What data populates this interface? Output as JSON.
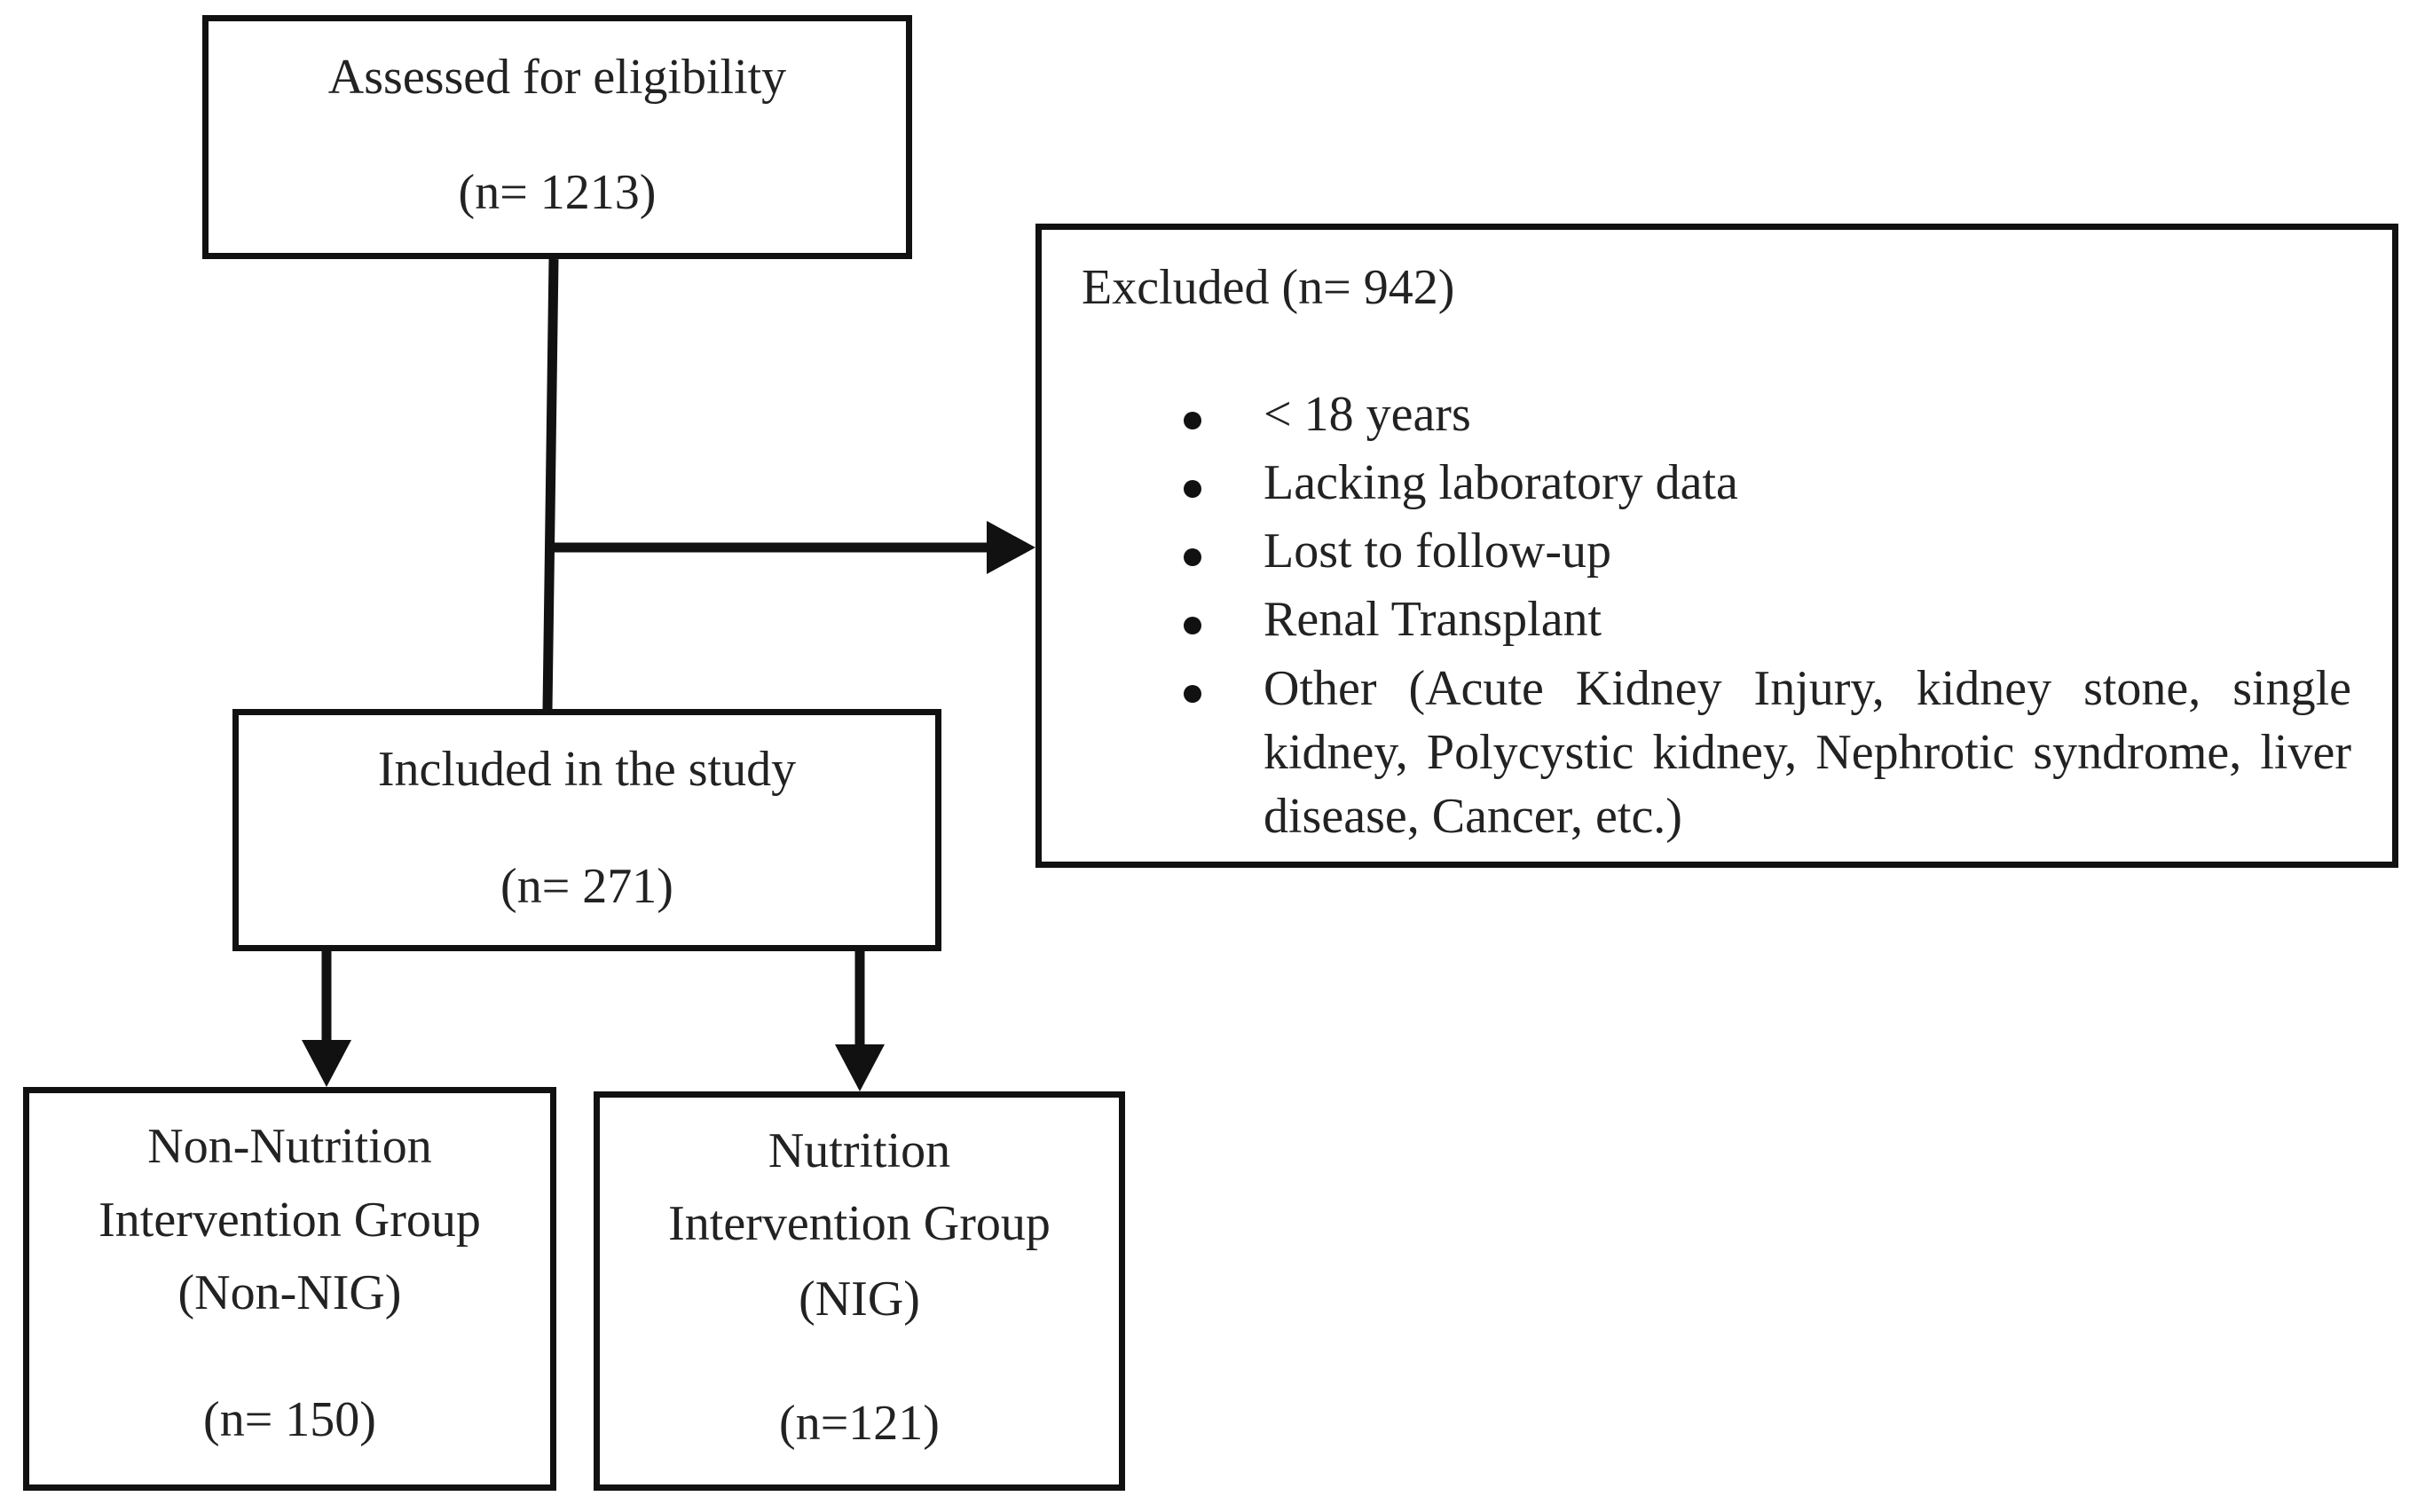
{
  "nodes": [
    {
      "lines": [
        "Assessed for eligibility",
        "(n= 1213)"
      ]
    },
    {
      "title": "Excluded (n= 942)",
      "items": [
        "< 18 years",
        "Lacking laboratory data",
        "Lost to follow-up",
        "Renal Transplant",
        "Other (Acute Kidney Injury, kidney stone, single kidney, Polycystic kidney, Nephrotic syndrome, liver disease, Cancer, etc.)"
      ]
    },
    {
      "lines": [
        "Included in the study",
        "(n= 271)"
      ]
    },
    {
      "lines": [
        "Non-Nutrition",
        "Intervention Group",
        "(Non-NIG)",
        "(n= 150)"
      ]
    },
    {
      "lines": [
        "Nutrition",
        "Intervention Group",
        "(NIG)",
        "(n=121)"
      ]
    }
  ]
}
